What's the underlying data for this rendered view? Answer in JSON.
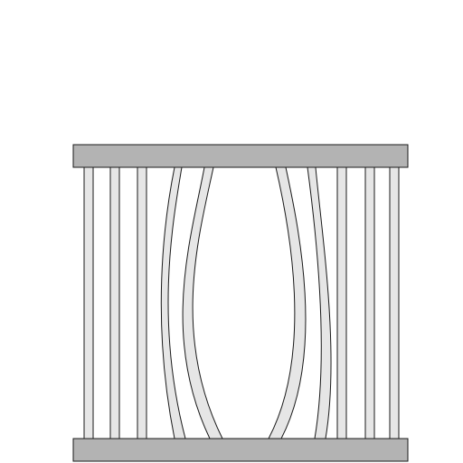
{
  "illustration": {
    "subject": "jail-bars-bent-apart-icon",
    "colors": {
      "background": "#ffffff",
      "rail_fill": "#b3b3b3",
      "bar_fill": "#e6e6e6",
      "stroke": "#1a1a1a"
    }
  }
}
